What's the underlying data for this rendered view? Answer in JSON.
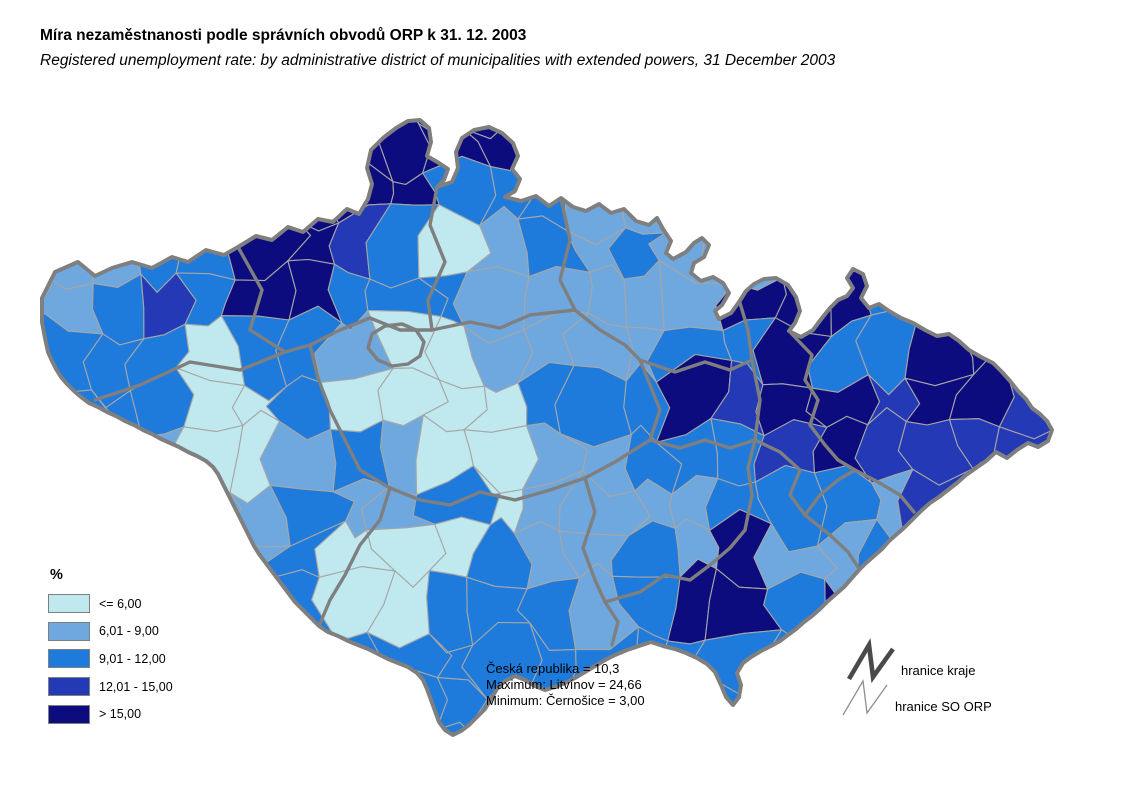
{
  "window": {
    "background": "#FFFFFF"
  },
  "title": {
    "line1_cs": "Míra nezaměstnanosti podle správních obvodů ORP k 31. 12. 2003",
    "line2_en": "Registered unemployment rate: by administrative district of municipalities with extended powers, 31 December 2003"
  },
  "legend": {
    "unit_label": "%",
    "classes": [
      {
        "label": "<= 6,00",
        "color": "#BFE9EF"
      },
      {
        "label": "6,01 - 9,00",
        "color": "#6FA8DF"
      },
      {
        "label": "9,01 - 12,00",
        "color": "#1E7BDC"
      },
      {
        "label": "12,01 - 15,00",
        "color": "#2339B5"
      },
      {
        "label": "> 15,00",
        "color": "#0D0C7E"
      }
    ]
  },
  "stats": {
    "lines": [
      "Česká republika = 10,3",
      "Maximum: Litvínov = 24,66",
      "Minimum: Černošice = 3,00"
    ]
  },
  "boundary_legend": {
    "items": [
      {
        "label": "hranice kraje",
        "style": "thick"
      },
      {
        "label": "hranice SO ORP",
        "style": "thin"
      }
    ]
  },
  "map": {
    "description": "Choropleth of the Czech Republic by SO ORP district; each grid cell holds an unemployment class index 0-4 referring to legend.classes",
    "boundary_colors": {
      "kraj": "#7F7F7F",
      "orp": "#A6A6A6"
    },
    "grid_cols": 21,
    "grid_rows": 12,
    "class_rows": [
      "111144444422113333333",
      "111244442221113333333",
      "112244320121211443333",
      "123244222111114442444",
      "222022100111122422444",
      "222002000022243443443",
      "111001210011222343333",
      "111112112011112221333",
      "111112000211214112333",
      "222222002221244243333",
      "222222222222222233333",
      "222222222222222222222"
    ]
  }
}
